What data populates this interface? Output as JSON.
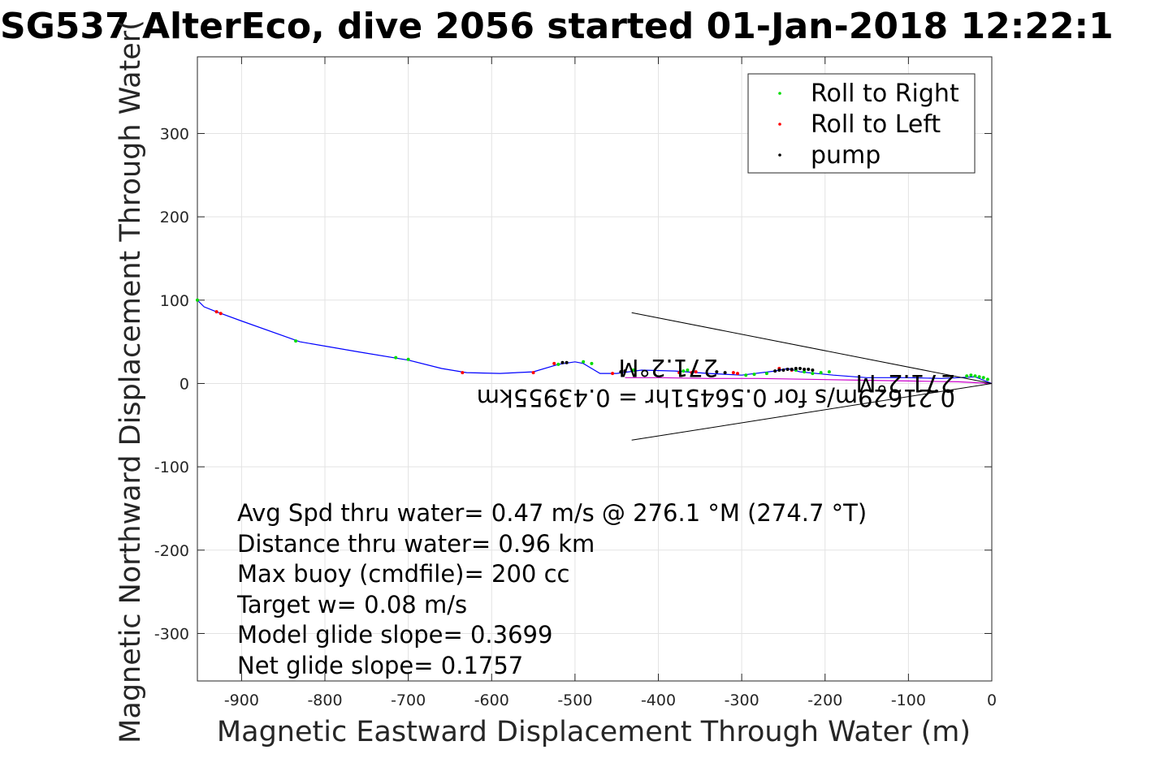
{
  "chart_data": {
    "type": "line",
    "title": "SG537 AlterEco, dive 2056 started 01-Jan-2018 12:22:1",
    "xlabel": "Magnetic Eastward Displacement Through Water (m)",
    "ylabel": "Magnetic Northward Displacement Through Water(",
    "xlim": [
      -953,
      0
    ],
    "ylim": [
      -357,
      392
    ],
    "xticks": [
      -900,
      -800,
      -700,
      -600,
      -500,
      -400,
      -300,
      -200,
      -100,
      0
    ],
    "yticks": [
      -300,
      -200,
      -100,
      0,
      100,
      200,
      300
    ],
    "grid": true,
    "legend_position": "top-right",
    "legend": [
      {
        "label": "Roll to Right",
        "color": "#00dd00"
      },
      {
        "label": "Roll to Left",
        "color": "#ff0000"
      },
      {
        "label": "pump",
        "color": "#000000"
      }
    ],
    "series": [
      {
        "color": "#0000ff",
        "x": [
          0,
          -20,
          -60,
          -100,
          -150,
          -190,
          -230,
          -245,
          -260,
          -300,
          -340,
          -380,
          -420,
          -450,
          -470,
          -480,
          -490,
          -500,
          -520,
          -550,
          -590,
          -630,
          -660,
          -700,
          -760,
          -830,
          -900,
          -930,
          -945,
          -953
        ],
        "y": [
          0,
          8,
          6,
          7,
          7,
          10,
          14,
          18,
          15,
          10,
          12,
          15,
          16,
          12,
          12,
          18,
          24,
          26,
          23,
          14,
          12,
          13,
          18,
          28,
          38,
          50,
          75,
          86,
          92,
          100
        ]
      },
      {
        "color": "#cc00cc",
        "x": [
          0,
          -40,
          -100,
          -160,
          -220,
          -280,
          -340,
          -400,
          -440
        ],
        "y": [
          0,
          2,
          3,
          4,
          5,
          6,
          6,
          7,
          7
        ]
      }
    ],
    "markers": {
      "roll_right": {
        "color": "#00dd00",
        "x": [
          -5,
          -10,
          -15,
          -20,
          -25,
          -30,
          -195,
          -205,
          -215,
          -225,
          -235,
          -270,
          -285,
          -295,
          -365,
          -370,
          -430,
          -480,
          -490,
          -520,
          -700,
          -715,
          -835,
          -953
        ],
        "y": [
          5,
          7,
          8,
          9,
          10,
          9,
          14,
          13,
          12,
          14,
          16,
          12,
          11,
          10,
          16,
          15,
          16,
          24,
          26,
          23,
          29,
          31,
          51,
          100
        ]
      },
      "roll_left": {
        "color": "#ff0000",
        "x": [
          -240,
          -255,
          -305,
          -310,
          -355,
          -360,
          -375,
          -440,
          -455,
          -525,
          -550,
          -635,
          -925,
          -930
        ],
        "y": [
          16,
          18,
          12,
          13,
          14,
          13,
          13,
          15,
          12,
          24,
          13,
          13,
          84,
          86
        ]
      },
      "pump": {
        "color": "#000000",
        "x": [
          -215,
          -220,
          -225,
          -230,
          -235,
          -240,
          -245,
          -250,
          -255,
          -260,
          -320,
          -330,
          -440,
          -445,
          -510,
          -515
        ],
        "y": [
          16,
          17,
          17,
          18,
          18,
          17,
          17,
          16,
          16,
          15,
          13,
          14,
          15,
          14,
          25,
          25
        ]
      }
    },
    "wedge_lines": [
      {
        "x": [
          -432,
          0
        ],
        "y": [
          85,
          0
        ]
      },
      {
        "x": [
          -432,
          0
        ],
        "y": [
          -68,
          0
        ]
      }
    ],
    "flipped_annotations": [
      "271.2°M",
      "0.21629m/s for 0.56451hr = 0.43955km",
      "271.2°M"
    ],
    "stats": [
      "Avg Spd thru water=  0.47 m/s @ 276.1 °M (274.7 °T)",
      "Distance thru water=  0.96 km",
      "Max buoy (cmdfile)= 200 cc",
      "Target w= 0.08 m/s",
      "Model glide slope= 0.3699",
      "Net glide slope= 0.1757"
    ]
  }
}
